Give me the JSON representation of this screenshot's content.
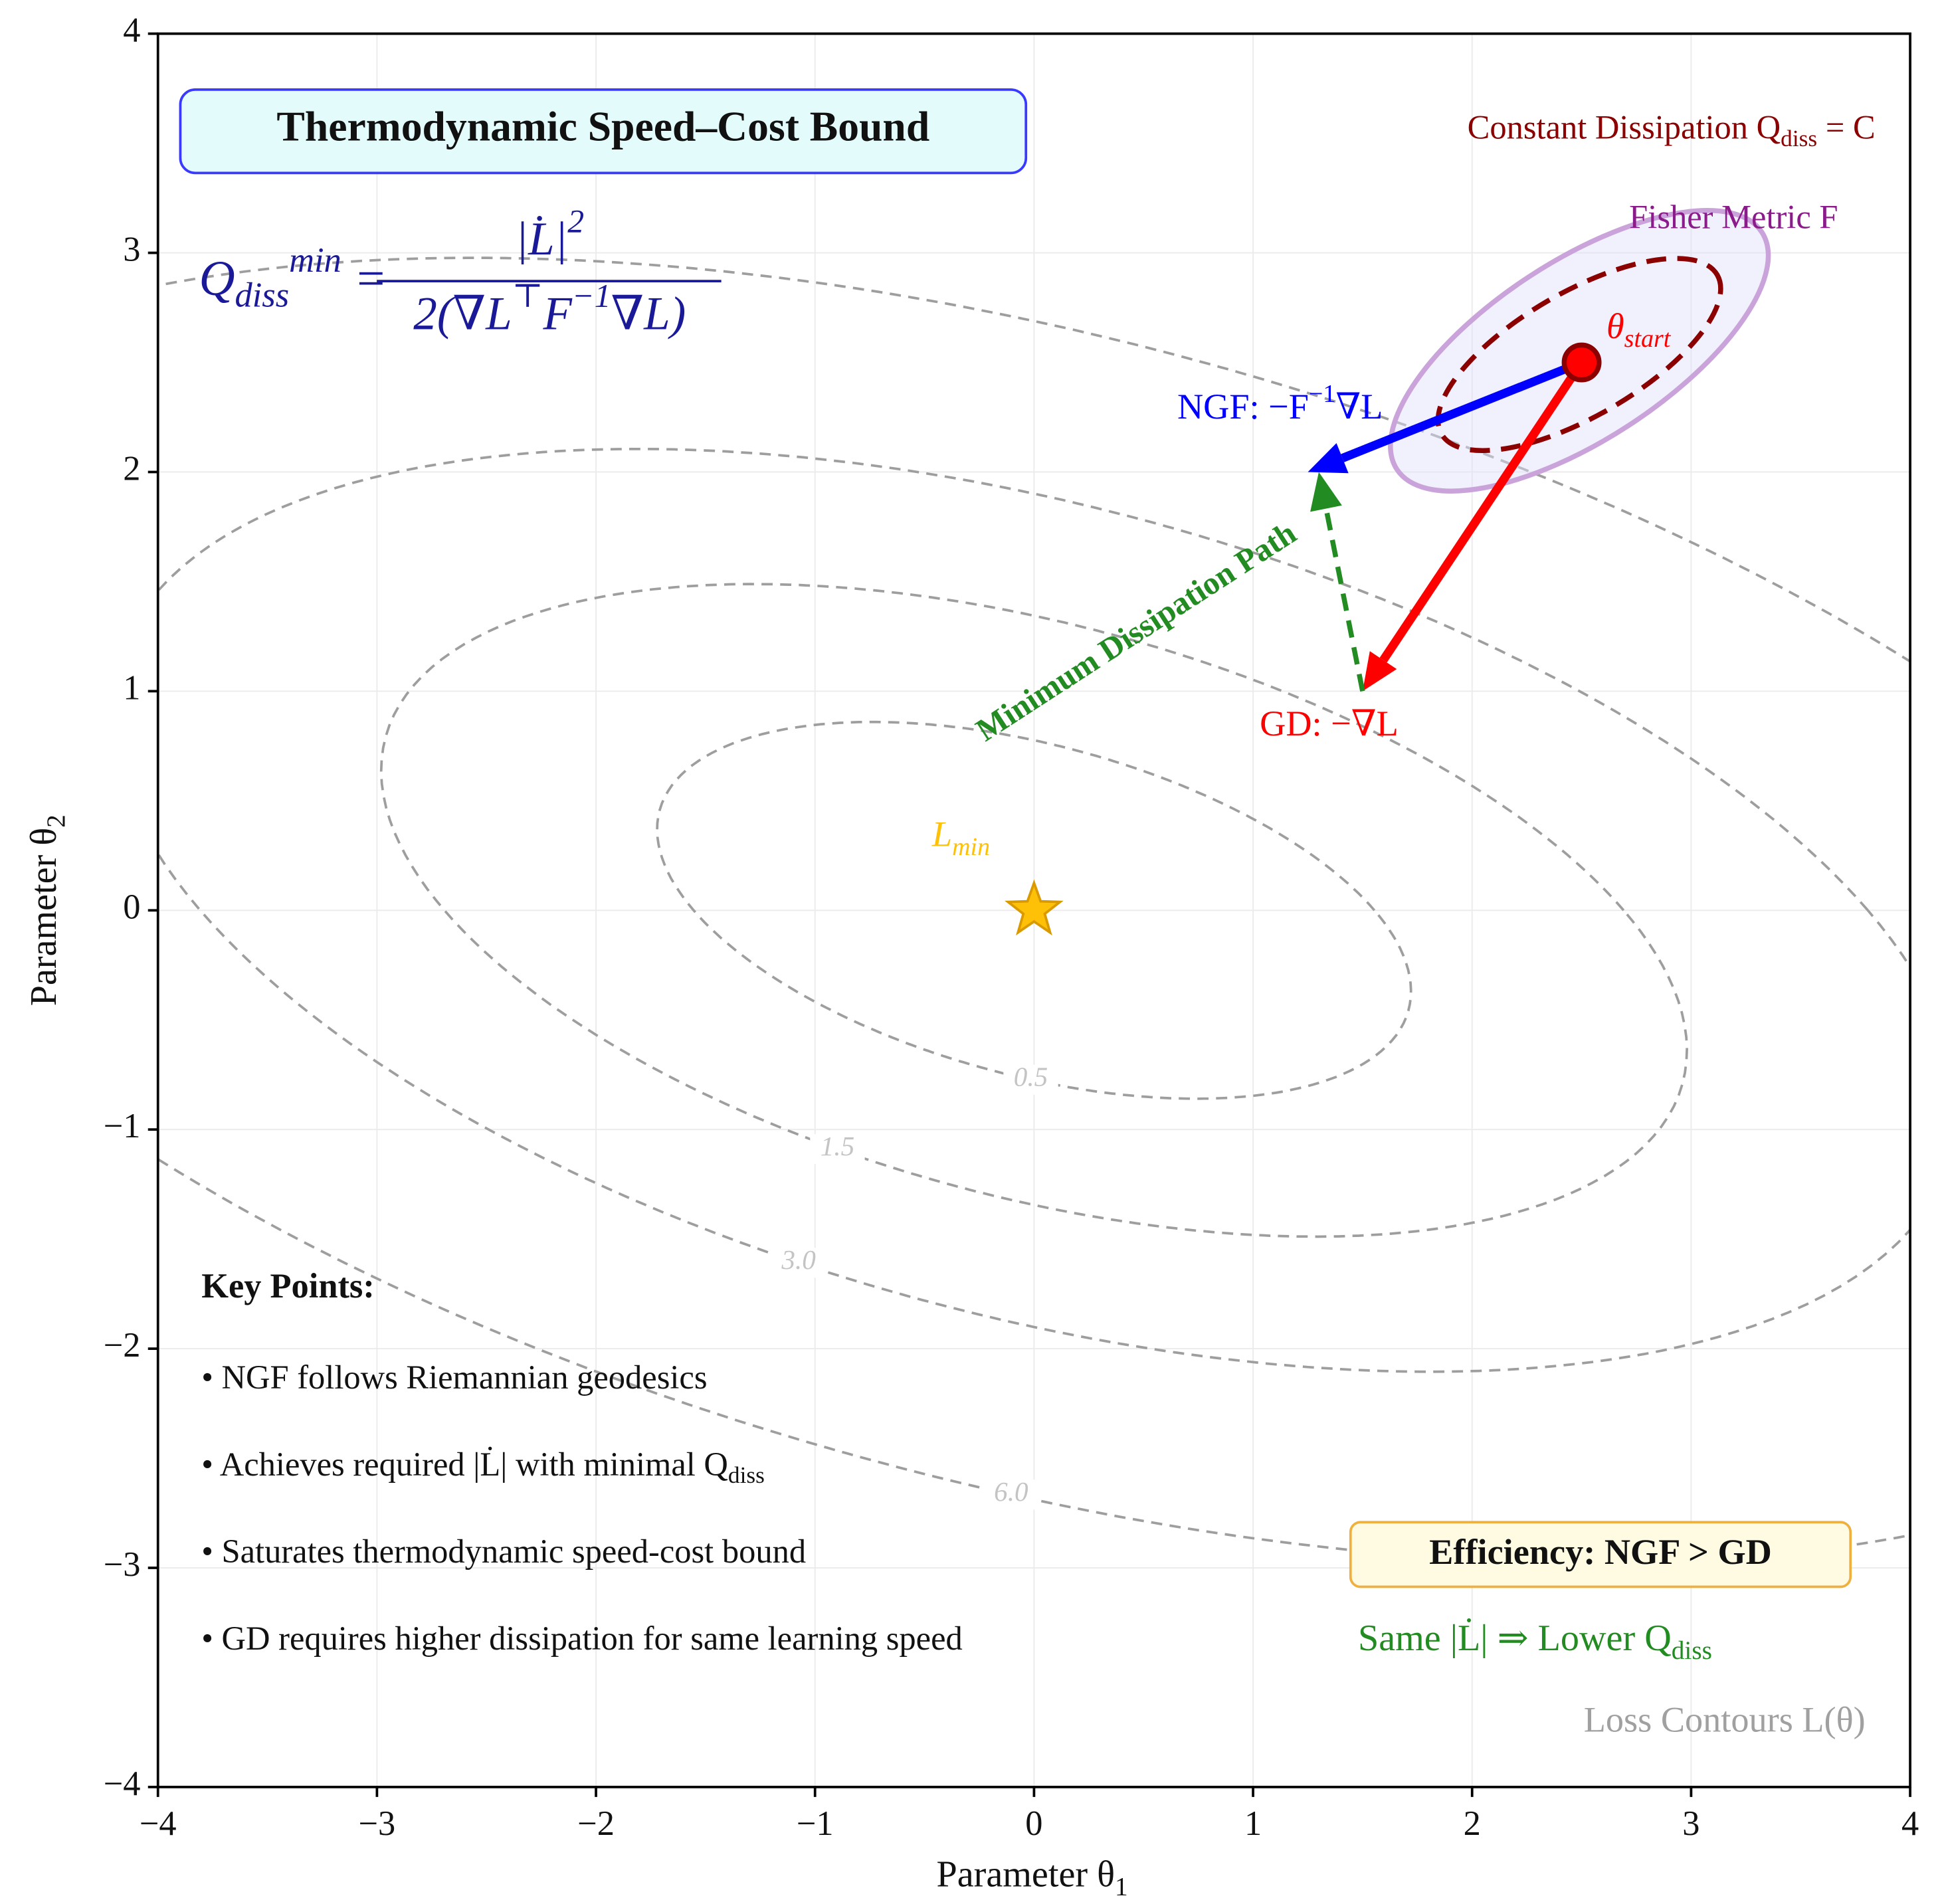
{
  "chart_data": {
    "type": "scatter",
    "title": "Thermodynamic Speed–Cost Bound",
    "formula": {
      "lhs": [
        "Q",
        {
          "sub": "diss"
        },
        {
          "sup": "min"
        },
        " ="
      ],
      "numerator": [
        "|L̇|",
        {
          "sup": "2"
        }
      ],
      "denominator": [
        "2(∇L",
        {
          "sup": "⊤"
        },
        "F",
        {
          "sup": "−1"
        },
        "∇L)"
      ]
    },
    "constant_label": [
      "Constant Dissipation ",
      "Q",
      {
        "sub": "diss"
      },
      " = C"
    ],
    "fisher_label": [
      "Fisher Metric ",
      "F"
    ],
    "x_label": [
      "Parameter θ",
      {
        "sub": "1"
      }
    ],
    "y_label": [
      "Parameter θ",
      {
        "sub": "2"
      }
    ],
    "xlim": [
      -4,
      4
    ],
    "ylim": [
      -4,
      4
    ],
    "xticks": [
      {
        "value": -4,
        "label": "−4"
      },
      {
        "value": -3,
        "label": "−3"
      },
      {
        "value": -2,
        "label": "−2"
      },
      {
        "value": -1,
        "label": "−1"
      },
      0,
      1,
      2,
      3,
      4
    ],
    "yticks": [
      {
        "value": -4,
        "label": "−4"
      },
      {
        "value": -3,
        "label": "−3"
      },
      {
        "value": -2,
        "label": "−2"
      },
      {
        "value": -1,
        "label": "−1"
      },
      0,
      1,
      2,
      3,
      4
    ],
    "grid": true,
    "contours": {
      "levels": [
        0.5,
        1.5,
        {
          "value": 3,
          "label": "3.0"
        },
        {
          "value": 6,
          "label": "6.0"
        }
      ],
      "color": "#9e9e9e",
      "label": [
        "Loss Contours L(θ)"
      ]
    },
    "points": [
      {
        "label": [
          "θ",
          {
            "sub": "start"
          }
        ],
        "x": 2.5,
        "y": 2.5,
        "color": "#ff0000",
        "marker": "circle"
      },
      {
        "label": [
          "L",
          {
            "sub": "min"
          }
        ],
        "x": 0,
        "y": 0,
        "color": "#ffc107",
        "marker": "star"
      }
    ],
    "arrows": [
      {
        "label": [
          "NGF: −",
          "F",
          {
            "sup": "−1"
          },
          "∇L"
        ],
        "from": [
          2.5,
          2.5
        ],
        "to": [
          1.25,
          2.0
        ],
        "color": "#0000ff"
      },
      {
        "label": [
          "GD: −∇L"
        ],
        "from": [
          2.5,
          2.5
        ],
        "to": [
          1.5,
          1.0
        ],
        "color": "#ff0000"
      },
      {
        "label": [
          "Minimum Dissipation Path"
        ],
        "from": [
          1.5,
          1.0
        ],
        "to": [
          1.3,
          2.0
        ],
        "color": "#228b22"
      }
    ],
    "key_points": {
      "title": "Key Points:",
      "items": [
        [
          "• NGF follows Riemannian geodesics"
        ],
        [
          "• Achieves required |L̇| with minimal Q",
          {
            "sub": "diss"
          }
        ],
        [
          "• Saturates thermodynamic speed-cost bound"
        ],
        [
          "• GD requires higher dissipation for same learning speed"
        ]
      ]
    },
    "efficiency": "Efficiency: NGF > GD",
    "efficiency_note": [
      "Same |L̇| ⇒ Lower Q",
      {
        "sub": "diss"
      }
    ]
  }
}
